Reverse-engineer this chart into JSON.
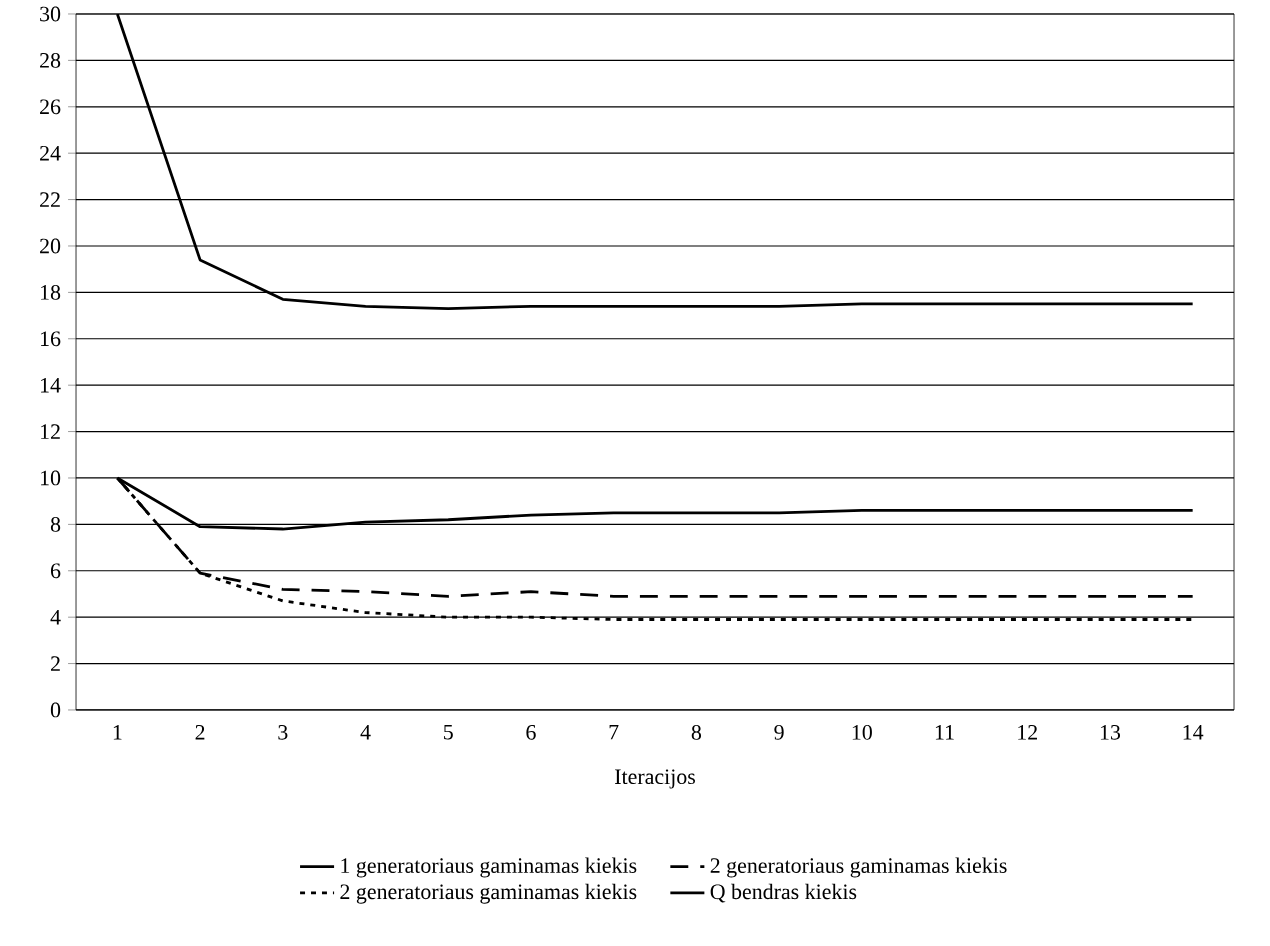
{
  "chart_data": {
    "type": "line",
    "xlabel": "Iteracijos",
    "categories": [
      "1",
      "2",
      "3",
      "4",
      "5",
      "6",
      "7",
      "8",
      "9",
      "10",
      "11",
      "12",
      "13",
      "14"
    ],
    "series": [
      {
        "name": "1 generatoriaus gaminamas kiekis",
        "color": "#000000",
        "line_style": "solid",
        "values": [
          10,
          7.9,
          7.8,
          8.1,
          8.2,
          8.4,
          8.5,
          8.5,
          8.5,
          8.6,
          8.6,
          8.6,
          8.6,
          8.6
        ]
      },
      {
        "name": "2 generatoriaus gaminamas kiekis",
        "color": "#000000",
        "line_style": "dashed",
        "values": [
          10,
          5.9,
          5.2,
          5.1,
          4.9,
          5.1,
          4.9,
          4.9,
          4.9,
          4.9,
          4.9,
          4.9,
          4.9,
          4.9
        ]
      },
      {
        "name": "2 generatoriaus gaminamas kiekis",
        "color": "#000000",
        "line_style": "dotted",
        "values": [
          10,
          5.9,
          4.7,
          4.2,
          4.0,
          4.0,
          3.9,
          3.9,
          3.9,
          3.9,
          3.9,
          3.9,
          3.9,
          3.9
        ]
      },
      {
        "name": "Q bendras kiekis",
        "color": "#000000",
        "line_style": "solid",
        "values": [
          30,
          19.4,
          17.7,
          17.4,
          17.3,
          17.4,
          17.4,
          17.4,
          17.4,
          17.5,
          17.5,
          17.5,
          17.5,
          17.5
        ]
      }
    ],
    "ylim": [
      0,
      30
    ],
    "yticks": [
      0,
      2,
      4,
      6,
      8,
      10,
      12,
      14,
      16,
      18,
      20,
      22,
      24,
      26,
      28,
      30
    ],
    "grid": "y",
    "legend": "bottom",
    "marker": "none"
  }
}
